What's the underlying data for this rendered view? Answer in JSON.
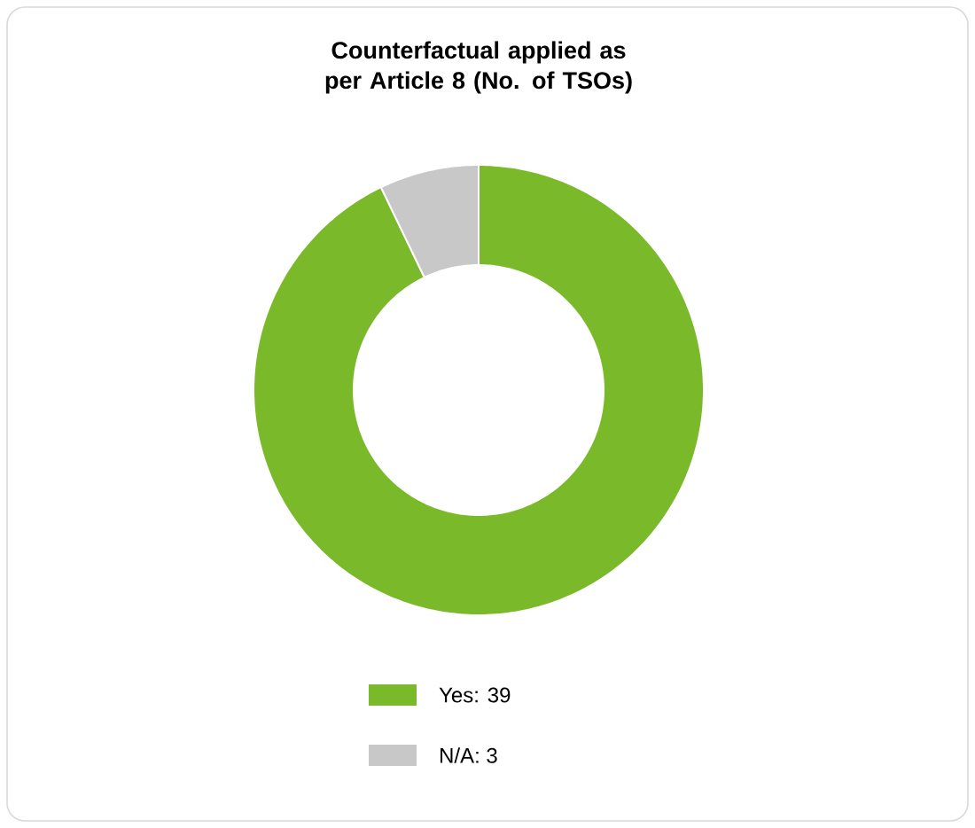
{
  "chart_data": {
    "type": "donut",
    "title": "Counterfactual applied as per Article 8 (No. of TSOs)",
    "categories": [
      "Yes: 39",
      "N/A: 3"
    ],
    "values": [
      39,
      3
    ],
    "colors": [
      "#7ab929",
      "#c8c8c8"
    ],
    "legend": "bottom"
  }
}
